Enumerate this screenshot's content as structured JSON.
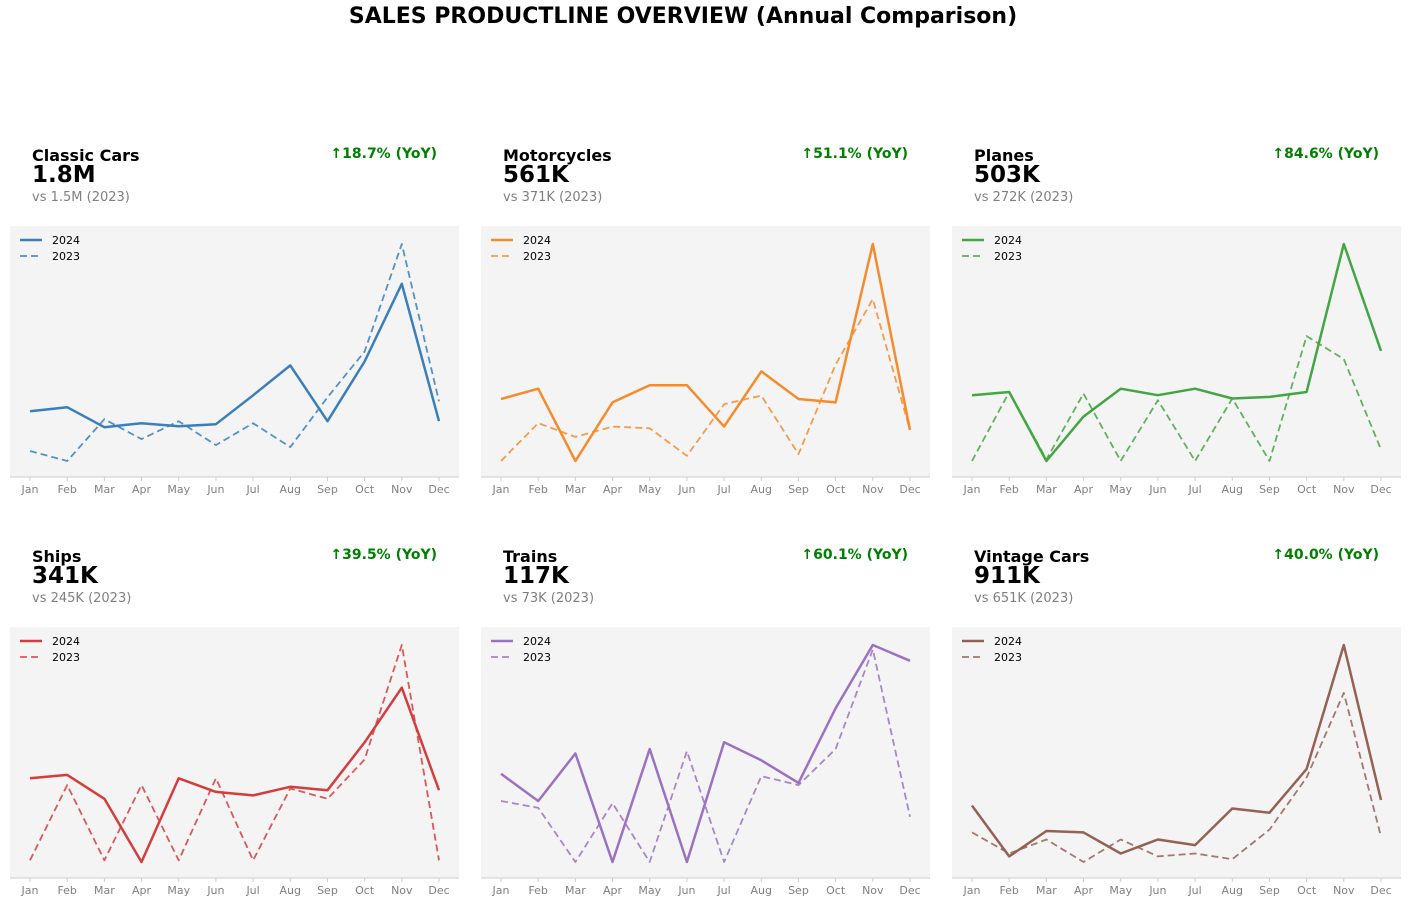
{
  "title": "SALES PRODUCTLINE OVERVIEW (Annual Comparison)",
  "legend": [
    "2024",
    "2023"
  ],
  "months": [
    "Jan",
    "Feb",
    "Mar",
    "Apr",
    "May",
    "Jun",
    "Jul",
    "Aug",
    "Sep",
    "Oct",
    "Nov",
    "Dec"
  ],
  "chart_data": [
    {
      "type": "line",
      "title": "Classic Cars",
      "total": "1.8M",
      "prev": "vs 1.5M (2023)",
      "yoy": "↑18.7% (YoY)",
      "color": "#3a7fba",
      "series": [
        {
          "name": "2024",
          "values": [
            4.3,
            4.5,
            3.5,
            3.7,
            3.55,
            3.65,
            5.1,
            6.6,
            3.8,
            6.8,
            10.7,
            3.8
          ]
        },
        {
          "name": "2023",
          "values": [
            2.3,
            1.8,
            3.9,
            2.9,
            3.8,
            2.6,
            3.7,
            2.5,
            5.0,
            7.3,
            12.7,
            4.8
          ]
        }
      ]
    },
    {
      "type": "line",
      "title": "Motorcycles",
      "total": "561K",
      "prev": "vs 371K (2023)",
      "yoy": "↑51.1% (YoY)",
      "color": "#f58b2c",
      "series": [
        {
          "name": "2024",
          "values": [
            2.9,
            3.2,
            1.1,
            2.8,
            3.3,
            3.3,
            2.1,
            3.7,
            2.9,
            2.8,
            7.4,
            2.0
          ]
        },
        {
          "name": "2023",
          "values": [
            1.1,
            2.2,
            1.8,
            2.1,
            2.05,
            1.25,
            2.75,
            3.0,
            1.3,
            3.9,
            5.8,
            2.0
          ]
        }
      ]
    },
    {
      "type": "line",
      "title": "Planes",
      "total": "503K",
      "prev": "vs 272K (2023)",
      "yoy": "↑84.6% (YoY)",
      "color": "#44a544",
      "series": [
        {
          "name": "2024",
          "values": [
            2.4,
            2.5,
            0.4,
            1.75,
            2.6,
            2.4,
            2.6,
            2.3,
            2.35,
            2.5,
            7.0,
            3.75
          ]
        },
        {
          "name": "2023",
          "values": [
            0.4,
            2.5,
            0.45,
            2.45,
            0.4,
            2.25,
            0.4,
            2.3,
            0.4,
            4.2,
            3.5,
            0.75
          ]
        }
      ]
    },
    {
      "type": "line",
      "title": "Ships",
      "total": "341K",
      "prev": "vs 245K (2023)",
      "yoy": "↑39.5% (YoY)",
      "color": "#d43d3d",
      "series": [
        {
          "name": "2024",
          "values": [
            2.7,
            2.8,
            2.1,
            0.25,
            2.7,
            2.3,
            2.2,
            2.45,
            2.35,
            3.75,
            5.35,
            2.35
          ]
        },
        {
          "name": "2023",
          "values": [
            0.3,
            2.5,
            0.3,
            2.5,
            0.3,
            2.7,
            0.3,
            2.4,
            2.1,
            3.25,
            6.6,
            0.3
          ]
        }
      ]
    },
    {
      "type": "line",
      "title": "Trains",
      "total": "117K",
      "prev": "vs 73K (2023)",
      "yoy": "↑60.1% (YoY)",
      "color": "#9b72c2",
      "series": [
        {
          "name": "2024",
          "values": [
            2.55,
            1.95,
            3.0,
            0.6,
            3.1,
            0.6,
            3.25,
            2.85,
            2.35,
            4.0,
            5.4,
            5.05
          ]
        },
        {
          "name": "2023",
          "values": [
            1.95,
            1.8,
            0.6,
            1.9,
            0.6,
            3.05,
            0.6,
            2.5,
            2.3,
            3.1,
            5.3,
            1.6
          ]
        }
      ]
    },
    {
      "type": "line",
      "title": "Vintage Cars",
      "total": "911K",
      "prev": "vs 651K (2023)",
      "yoy": "↑40.0% (YoY)",
      "color": "#946255",
      "series": [
        {
          "name": "2024",
          "values": [
            3.5,
            1.7,
            2.6,
            2.55,
            1.8,
            2.3,
            2.1,
            3.4,
            3.25,
            4.8,
            9.2,
            3.7
          ]
        },
        {
          "name": "2023",
          "values": [
            2.55,
            1.8,
            2.3,
            1.5,
            2.3,
            1.7,
            1.8,
            1.6,
            2.65,
            4.5,
            7.5,
            2.4
          ]
        }
      ]
    }
  ]
}
